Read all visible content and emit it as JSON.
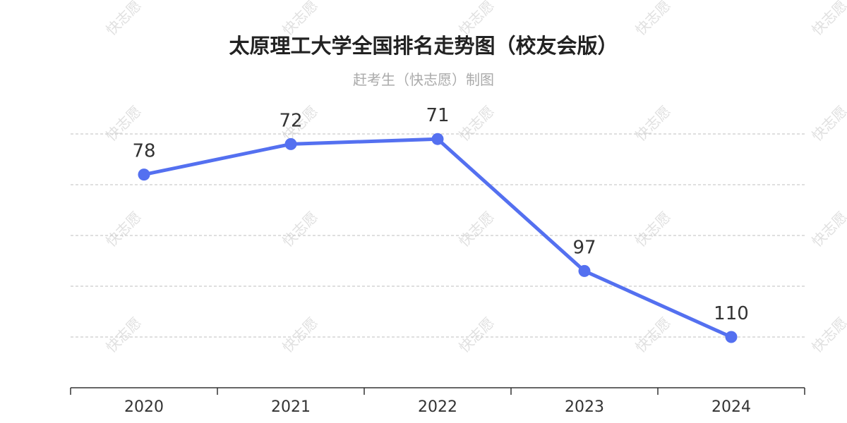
{
  "watermark": "快志愿",
  "chart_data": {
    "type": "line",
    "title": "太原理工大学全国排名走势图（校友会版）",
    "subtitle": "赶考生（快志愿）制图",
    "categories": [
      "2020",
      "2021",
      "2022",
      "2023",
      "2024"
    ],
    "series": [
      {
        "values": [
          78,
          72,
          71,
          97,
          110
        ],
        "color": "#5470f0"
      }
    ],
    "y_inverted": true,
    "ylim": [
      70,
      120
    ],
    "grid": true,
    "grid_style": "dashed",
    "legend": "none"
  }
}
